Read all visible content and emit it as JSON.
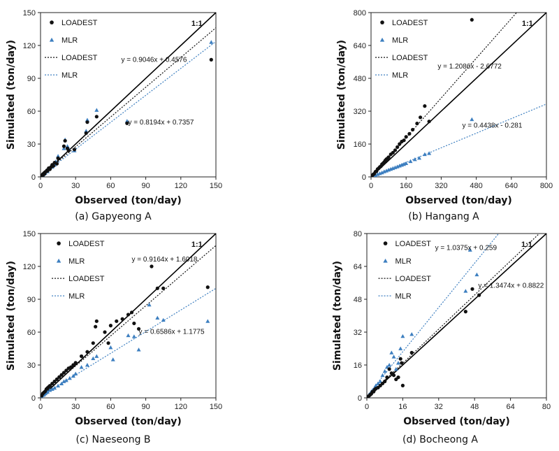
{
  "colors": {
    "loadest": "#111111",
    "mlr": "#3d7fc0",
    "axis": "#222222"
  },
  "chart_data": [
    {
      "type": "scatter",
      "caption": "(a) Gapyeong A",
      "xlabel": "Observed  (ton/day)",
      "ylabel": "Simulated  (ton/day)",
      "xlim": [
        0,
        150
      ],
      "ylim": [
        0,
        150
      ],
      "ticks": [
        "0",
        "30",
        "60",
        "90",
        "120",
        "150"
      ],
      "tick_values": [
        0,
        30,
        60,
        90,
        120,
        150
      ],
      "one_to_one_label": "1:1",
      "legend": [
        "LOADEST",
        "MLR",
        "LOADEST",
        "MLR"
      ],
      "equations": {
        "loadest": "y = 0.9046x + 0.4576",
        "mlr": "y = 0.8194x + 0.7357"
      },
      "fits": {
        "loadest": [
          0.9046,
          0.4576
        ],
        "mlr": [
          0.8194,
          0.7357
        ]
      },
      "loadest_points": [
        [
          0.5,
          0.5
        ],
        [
          1,
          1.2
        ],
        [
          1.5,
          1.5
        ],
        [
          2,
          2.5
        ],
        [
          2.5,
          2
        ],
        [
          3,
          3.5
        ],
        [
          3.5,
          3
        ],
        [
          4,
          4.5
        ],
        [
          5,
          5
        ],
        [
          5.5,
          6
        ],
        [
          6,
          5.5
        ],
        [
          7,
          8
        ],
        [
          8,
          7
        ],
        [
          9,
          9
        ],
        [
          10,
          11
        ],
        [
          11,
          10
        ],
        [
          12,
          13
        ],
        [
          14,
          12
        ],
        [
          15,
          17
        ],
        [
          20,
          28
        ],
        [
          21,
          33
        ],
        [
          23,
          26
        ],
        [
          24,
          24
        ],
        [
          29,
          25
        ],
        [
          39,
          40
        ],
        [
          40,
          50
        ],
        [
          48,
          55
        ],
        [
          74,
          49
        ],
        [
          146,
          107
        ]
      ],
      "mlr_points": [
        [
          0.5,
          0.7
        ],
        [
          1,
          1
        ],
        [
          1.5,
          2
        ],
        [
          2,
          1.8
        ],
        [
          2.5,
          3
        ],
        [
          3,
          2.8
        ],
        [
          3.5,
          4
        ],
        [
          4,
          3.5
        ],
        [
          5,
          6
        ],
        [
          6,
          5
        ],
        [
          7,
          7
        ],
        [
          8,
          8
        ],
        [
          9,
          10
        ],
        [
          10,
          9
        ],
        [
          12,
          11
        ],
        [
          13,
          14
        ],
        [
          15,
          19
        ],
        [
          20,
          26
        ],
        [
          21,
          34
        ],
        [
          23,
          28
        ],
        [
          24,
          26
        ],
        [
          29,
          24
        ],
        [
          39,
          42
        ],
        [
          40,
          52
        ],
        [
          48,
          61
        ],
        [
          74,
          51
        ],
        [
          146,
          123
        ]
      ]
    },
    {
      "type": "scatter",
      "caption": "(b) Hangang A",
      "xlabel": "Observed  (ton/day)",
      "ylabel": "Simulated  (ton/day)",
      "xlim": [
        0,
        800
      ],
      "ylim": [
        0,
        800
      ],
      "ticks": [
        "0",
        "160",
        "320",
        "480",
        "640",
        "800"
      ],
      "tick_values": [
        0,
        160,
        320,
        480,
        640,
        800
      ],
      "one_to_one_label": "1:1",
      "legend": [
        "LOADEST",
        "MLR",
        "LOADEST",
        "MLR"
      ],
      "equations": {
        "loadest": "y = 1.2086x - 2.6772",
        "mlr": "y = 0.4438x - 0.281"
      },
      "fits": {
        "loadest": [
          1.2086,
          -2.6772
        ],
        "mlr": [
          0.4438,
          -0.281
        ]
      },
      "loadest_points": [
        [
          5,
          6
        ],
        [
          10,
          12
        ],
        [
          15,
          16
        ],
        [
          20,
          25
        ],
        [
          25,
          28
        ],
        [
          30,
          38
        ],
        [
          35,
          42
        ],
        [
          40,
          48
        ],
        [
          45,
          52
        ],
        [
          50,
          62
        ],
        [
          55,
          66
        ],
        [
          60,
          72
        ],
        [
          65,
          80
        ],
        [
          70,
          86
        ],
        [
          75,
          90
        ],
        [
          80,
          96
        ],
        [
          90,
          110
        ],
        [
          100,
          118
        ],
        [
          110,
          130
        ],
        [
          120,
          145
        ],
        [
          130,
          160
        ],
        [
          140,
          172
        ],
        [
          150,
          178
        ],
        [
          160,
          195
        ],
        [
          175,
          210
        ],
        [
          190,
          230
        ],
        [
          210,
          260
        ],
        [
          225,
          290
        ],
        [
          245,
          345
        ],
        [
          265,
          270
        ],
        [
          460,
          765
        ]
      ],
      "mlr_points": [
        [
          5,
          2
        ],
        [
          10,
          4
        ],
        [
          20,
          8
        ],
        [
          30,
          13
        ],
        [
          40,
          17
        ],
        [
          50,
          21
        ],
        [
          60,
          26
        ],
        [
          70,
          30
        ],
        [
          80,
          34
        ],
        [
          90,
          38
        ],
        [
          100,
          42
        ],
        [
          110,
          46
        ],
        [
          120,
          50
        ],
        [
          130,
          54
        ],
        [
          140,
          58
        ],
        [
          150,
          62
        ],
        [
          160,
          66
        ],
        [
          180,
          76
        ],
        [
          200,
          85
        ],
        [
          220,
          92
        ],
        [
          245,
          110
        ],
        [
          265,
          115
        ],
        [
          460,
          280
        ]
      ]
    },
    {
      "type": "scatter",
      "caption": "(c) Naeseong B",
      "xlabel": "Observed  (ton/day)",
      "ylabel": "Simulated  (ton/day)",
      "xlim": [
        0,
        150
      ],
      "ylim": [
        0,
        150
      ],
      "ticks": [
        "0",
        "30",
        "60",
        "90",
        "120",
        "150"
      ],
      "tick_values": [
        0,
        30,
        60,
        90,
        120,
        150
      ],
      "one_to_one_label": "1:1",
      "legend": [
        "LOADEST",
        "MLR",
        "LOADEST",
        "MLR"
      ],
      "equations": {
        "loadest": "y = 0.9164x + 1.6018",
        "mlr": "y = 0.6586x + 1.1775"
      },
      "fits": {
        "loadest": [
          0.9164,
          1.6018
        ],
        "mlr": [
          0.6586,
          1.1775
        ]
      },
      "loadest_points": [
        [
          1,
          2
        ],
        [
          2,
          4
        ],
        [
          3,
          5
        ],
        [
          4,
          6
        ],
        [
          5,
          8
        ],
        [
          6,
          9
        ],
        [
          7,
          10
        ],
        [
          8,
          11
        ],
        [
          10,
          13
        ],
        [
          12,
          15
        ],
        [
          14,
          17
        ],
        [
          16,
          19
        ],
        [
          18,
          21
        ],
        [
          20,
          23
        ],
        [
          22,
          25
        ],
        [
          24,
          27
        ],
        [
          26,
          28
        ],
        [
          28,
          30
        ],
        [
          30,
          32
        ],
        [
          35,
          38
        ],
        [
          40,
          42
        ],
        [
          45,
          50
        ],
        [
          47,
          65
        ],
        [
          48,
          70
        ],
        [
          55,
          60
        ],
        [
          58,
          50
        ],
        [
          60,
          66
        ],
        [
          65,
          70
        ],
        [
          70,
          72
        ],
        [
          75,
          76
        ],
        [
          78,
          78
        ],
        [
          80,
          68
        ],
        [
          84,
          63
        ],
        [
          95,
          120
        ],
        [
          100,
          100
        ],
        [
          105,
          100
        ],
        [
          143,
          101
        ]
      ],
      "mlr_points": [
        [
          1,
          1.5
        ],
        [
          2,
          2.5
        ],
        [
          3,
          3
        ],
        [
          4,
          4
        ],
        [
          5,
          5
        ],
        [
          6,
          5.5
        ],
        [
          8,
          7
        ],
        [
          10,
          8
        ],
        [
          12,
          9
        ],
        [
          15,
          11
        ],
        [
          18,
          13
        ],
        [
          20,
          15
        ],
        [
          22,
          16
        ],
        [
          25,
          18
        ],
        [
          28,
          20
        ],
        [
          30,
          22
        ],
        [
          35,
          28
        ],
        [
          40,
          30
        ],
        [
          45,
          36
        ],
        [
          48,
          38
        ],
        [
          60,
          46
        ],
        [
          62,
          35
        ],
        [
          75,
          57
        ],
        [
          80,
          56
        ],
        [
          84,
          44
        ],
        [
          93,
          85
        ],
        [
          100,
          73
        ],
        [
          105,
          71
        ],
        [
          143,
          70
        ]
      ]
    },
    {
      "type": "scatter",
      "caption": "(d) Bocheong A",
      "xlabel": "Observed  (ton/day)",
      "ylabel": "Simulated  (ton/day)",
      "xlim": [
        0,
        80
      ],
      "ylim": [
        0,
        80
      ],
      "ticks": [
        "0",
        "16",
        "32",
        "48",
        "64",
        "80"
      ],
      "tick_values": [
        0,
        16,
        32,
        48,
        64,
        80
      ],
      "one_to_one_label": "1:1",
      "legend": [
        "LOADEST",
        "MLR",
        "LOADEST",
        "MLR"
      ],
      "equations": {
        "loadest": "y = 1.0375x + 0.259",
        "mlr": "y = 1.3474x + 0.8822"
      },
      "fits": {
        "loadest": [
          1.0375,
          0.259
        ],
        "mlr": [
          1.3474,
          0.8822
        ]
      },
      "loadest_points": [
        [
          0.5,
          0.5
        ],
        [
          1,
          1
        ],
        [
          1.5,
          1.5
        ],
        [
          2,
          2
        ],
        [
          2.5,
          3
        ],
        [
          3,
          3
        ],
        [
          3.5,
          4
        ],
        [
          4,
          4.5
        ],
        [
          5,
          5
        ],
        [
          6,
          6
        ],
        [
          7,
          7
        ],
        [
          8,
          8
        ],
        [
          9,
          10
        ],
        [
          10,
          14
        ],
        [
          11,
          12
        ],
        [
          12,
          11
        ],
        [
          13,
          9
        ],
        [
          14,
          10
        ],
        [
          15,
          19
        ],
        [
          15.5,
          17
        ],
        [
          16,
          6
        ],
        [
          20,
          22
        ],
        [
          44,
          42
        ],
        [
          47,
          53
        ],
        [
          50,
          50
        ]
      ],
      "mlr_points": [
        [
          0.5,
          0.7
        ],
        [
          1,
          1.5
        ],
        [
          1.5,
          2
        ],
        [
          2,
          3
        ],
        [
          2.5,
          3.5
        ],
        [
          3,
          4
        ],
        [
          3.5,
          5
        ],
        [
          4,
          6
        ],
        [
          5,
          7
        ],
        [
          6,
          8
        ],
        [
          7,
          11
        ],
        [
          8,
          13
        ],
        [
          9,
          15
        ],
        [
          10,
          16
        ],
        [
          11,
          22
        ],
        [
          12,
          20
        ],
        [
          13,
          14
        ],
        [
          14,
          17
        ],
        [
          15,
          24
        ],
        [
          16,
          30
        ],
        [
          20,
          31
        ],
        [
          44,
          52
        ],
        [
          46,
          72
        ],
        [
          49,
          60
        ]
      ]
    }
  ]
}
